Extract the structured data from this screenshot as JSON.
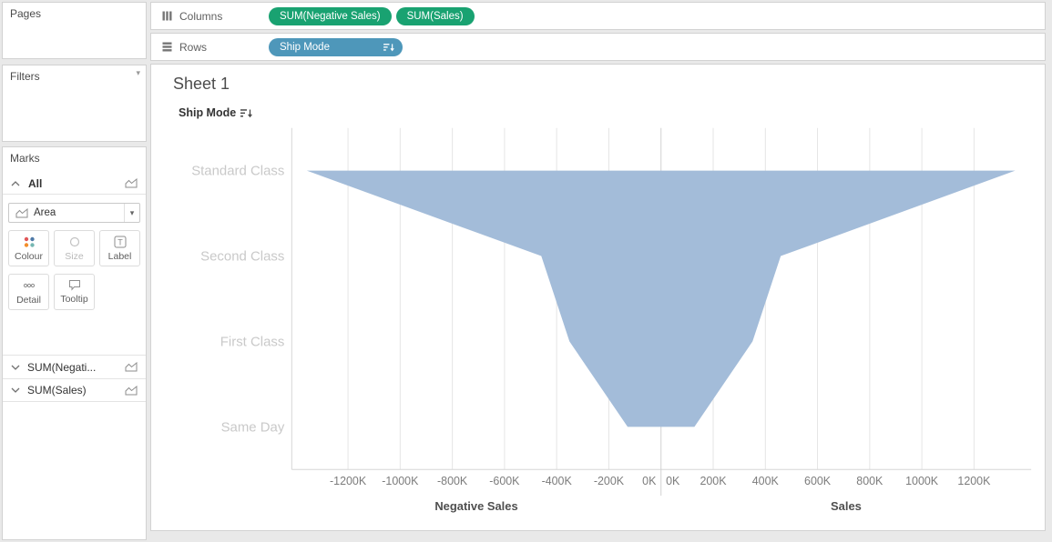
{
  "panels": {
    "pages": {
      "title": "Pages"
    },
    "filters": {
      "title": "Filters"
    },
    "marks": {
      "title": "Marks",
      "all_label": "All",
      "mark_type": "Area",
      "buttons": [
        {
          "label": "Colour"
        },
        {
          "label": "Size"
        },
        {
          "label": "Label"
        },
        {
          "label": "Detail"
        },
        {
          "label": "Tooltip"
        }
      ],
      "measures": [
        {
          "label": "SUM(Negati..."
        },
        {
          "label": "SUM(Sales)"
        }
      ]
    }
  },
  "shelves": {
    "columns": {
      "label": "Columns",
      "pills": [
        {
          "label": "SUM(Negative Sales)",
          "color": "#19A271"
        },
        {
          "label": "SUM(Sales)",
          "color": "#19A271"
        }
      ]
    },
    "rows": {
      "label": "Rows",
      "pills": [
        {
          "label": "Ship Mode",
          "color": "#4E97BA",
          "sorted": true
        }
      ]
    }
  },
  "sheet": {
    "title": "Sheet 1",
    "row_field": "Ship Mode"
  },
  "chart_data": {
    "type": "area",
    "subtype": "funnel",
    "row_field": "Ship Mode",
    "categories": [
      "Standard Class",
      "Second Class",
      "First Class",
      "Same Day"
    ],
    "series": [
      {
        "name": "SUM(Negative Sales)",
        "axis_title": "Negative Sales",
        "values_K": [
          -1358,
          -459,
          -351,
          -128
        ]
      },
      {
        "name": "SUM(Sales)",
        "axis_title": "Sales",
        "values_K": [
          1358,
          459,
          351,
          128
        ]
      }
    ],
    "axes": [
      {
        "title": "Negative Sales",
        "tick_labels": [
          "-1200K",
          "-1000K",
          "-800K",
          "-600K",
          "-400K",
          "-200K",
          "0K"
        ],
        "tick_values_K": [
          -1200,
          -1000,
          -800,
          -600,
          -400,
          -200,
          0
        ],
        "range_K": [
          -1416,
          0
        ]
      },
      {
        "title": "Sales",
        "tick_labels": [
          "0K",
          "200K",
          "400K",
          "600K",
          "800K",
          "1000K",
          "1200K"
        ],
        "tick_values_K": [
          0,
          200,
          400,
          600,
          800,
          1000,
          1200
        ],
        "range_K": [
          0,
          1416
        ]
      }
    ],
    "grid": true,
    "area_color": "#A3BCD9",
    "category_label_color": "#C9C9C9",
    "tick_label_color": "#7C7C7C",
    "axis_title_color": "#4F4F4F"
  }
}
